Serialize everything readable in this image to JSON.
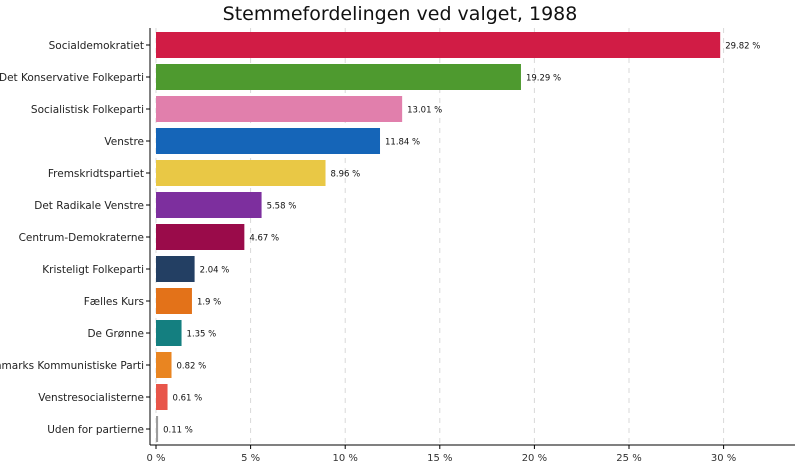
{
  "chart_data": {
    "type": "bar",
    "orientation": "horizontal",
    "title": "Stemmefordelingen ved valget, 1988",
    "xlabel": "",
    "ylabel": "",
    "xlim": [
      0,
      33
    ],
    "x_ticks": [
      0,
      5,
      10,
      15,
      20,
      25,
      30
    ],
    "x_tick_labels": [
      "0 %",
      "5 %",
      "10 %",
      "15 %",
      "20 %",
      "25 %",
      "30 %"
    ],
    "grid": "vertical-dashed",
    "categories": [
      "Socialdemokratiet",
      "Det Konservative Folkeparti",
      "Socialistisk Folkeparti",
      "Venstre",
      "Fremskridtspartiet",
      "Det Radikale Venstre",
      "Centrum-Demokraterne",
      "Kristeligt Folkeparti",
      "Fælles Kurs",
      "De Grønne",
      "Danmarks Kommunistiske Parti",
      "Venstresocialisterne",
      "Uden for partierne"
    ],
    "values": [
      29.82,
      19.29,
      13.01,
      11.84,
      8.96,
      5.58,
      4.67,
      2.04,
      1.9,
      1.35,
      0.82,
      0.61,
      0.11
    ],
    "value_labels": [
      "29.82 %",
      "19.29 %",
      "13.01 %",
      "11.84 %",
      "8.96 %",
      "5.58 %",
      "4.67 %",
      "2.04 %",
      "1.9 %",
      "1.35 %",
      "0.82 %",
      "0.61 %",
      "0.11 %"
    ],
    "colors": [
      "#d11c45",
      "#4e9a2f",
      "#e17fac",
      "#1565b8",
      "#e9c845",
      "#7d2f9e",
      "#9a0b4a",
      "#233f63",
      "#e37219",
      "#147f80",
      "#e98521",
      "#e8564a",
      "#9d9d9d"
    ]
  }
}
